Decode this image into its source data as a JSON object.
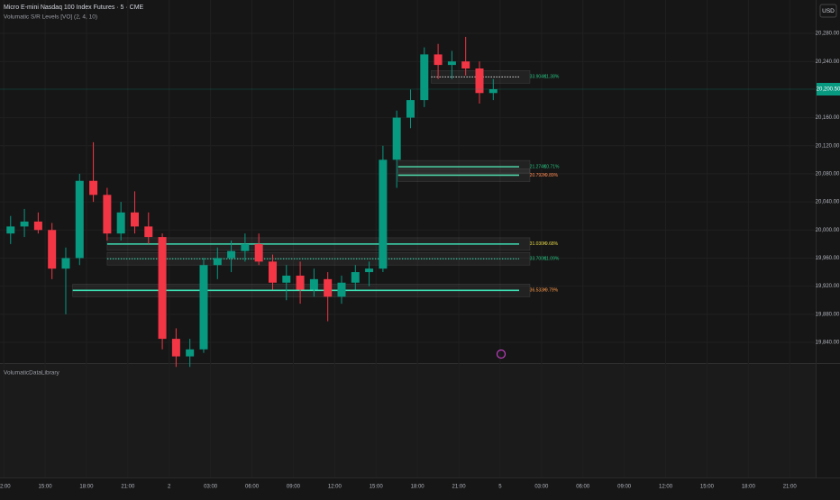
{
  "header": {
    "symbol": "Micro E-mini Nasdaq 100 Index Futures · 5 · CME",
    "indicator": "Volumatic S/R Levels [VO] (2, 4, 10)",
    "currency": "USD"
  },
  "pane2_title": "VolumaticDataLibrary",
  "chart_data": {
    "type": "candlestick",
    "x": [
      0.5,
      1.5,
      2.5,
      3.5,
      4.5,
      5.5,
      6.5,
      7.5,
      8.5,
      9.5,
      10.5,
      11.5,
      12.5,
      13.5,
      14.5,
      15.5,
      16.5,
      17.5,
      18.5,
      19.5,
      20.5,
      21.5,
      22.5,
      23.5,
      24.5,
      25.5,
      26.5,
      27.5,
      28.5,
      29.5,
      30.5,
      31.5,
      32.5,
      33.5,
      34.5,
      35.5
    ],
    "open": [
      19995,
      20005,
      20012,
      20000,
      19945,
      19960,
      20070,
      20050,
      19995,
      20025,
      20005,
      19990,
      19845,
      19820,
      19830,
      19950,
      19960,
      19970,
      19980,
      19955,
      19925,
      19935,
      19915,
      19930,
      19905,
      19925,
      19940,
      19945,
      20100,
      20160,
      20185,
      20250,
      20235,
      20240,
      20230,
      20195
    ],
    "high": [
      20020,
      20030,
      20025,
      20010,
      19975,
      20080,
      20125,
      20060,
      20040,
      20055,
      20025,
      19995,
      19860,
      19845,
      19960,
      19975,
      19985,
      19995,
      19995,
      19965,
      19950,
      19955,
      19945,
      19940,
      19935,
      19950,
      19955,
      20120,
      20170,
      20200,
      20260,
      20265,
      20255,
      20275,
      20240,
      20215
    ],
    "low": [
      19980,
      19990,
      19995,
      19930,
      19880,
      19950,
      20040,
      19985,
      19985,
      19995,
      19980,
      19830,
      19805,
      19805,
      19825,
      19930,
      19940,
      19955,
      19950,
      19915,
      19900,
      19895,
      19905,
      19870,
      19895,
      19915,
      19920,
      19940,
      20060,
      20145,
      20175,
      20215,
      20215,
      20220,
      20180,
      20185
    ],
    "close": [
      20005,
      20012,
      20000,
      19945,
      19960,
      20070,
      20050,
      19995,
      20025,
      20005,
      19990,
      19845,
      19820,
      19830,
      19950,
      19960,
      19970,
      19980,
      19955,
      19925,
      19935,
      19915,
      19930,
      19905,
      19925,
      19940,
      19945,
      20100,
      20160,
      20185,
      20250,
      20235,
      20240,
      20230,
      20195,
      20200.5
    ],
    "up_color": "#089981",
    "down_color": "#f23645",
    "xlim": [
      -0.27,
      58.88
    ],
    "xticks": [
      {
        "value": 0,
        "label": "12:00"
      },
      {
        "value": 3,
        "label": "15:00"
      },
      {
        "value": 6,
        "label": "18:00"
      },
      {
        "value": 9,
        "label": "21:00"
      },
      {
        "value": 12,
        "label": "2"
      },
      {
        "value": 15,
        "label": "03:00"
      },
      {
        "value": 18,
        "label": "06:00"
      },
      {
        "value": 21,
        "label": "09:00"
      },
      {
        "value": 24,
        "label": "12:00"
      },
      {
        "value": 27,
        "label": "15:00"
      },
      {
        "value": 30,
        "label": "18:00"
      },
      {
        "value": 33,
        "label": "21:00"
      },
      {
        "value": 36,
        "label": "5"
      },
      {
        "value": 39,
        "label": "03:00"
      },
      {
        "value": 42,
        "label": "06:00"
      },
      {
        "value": 45,
        "label": "09:00"
      },
      {
        "value": 48,
        "label": "12:00"
      },
      {
        "value": 51,
        "label": "15:00"
      },
      {
        "value": 54,
        "label": "18:00"
      },
      {
        "value": 57,
        "label": "21:00"
      }
    ],
    "ylim": [
      19810.5,
      20327.5
    ],
    "yticks": [
      {
        "value": 20280,
        "label": "20,280.00"
      },
      {
        "value": 20240,
        "label": "20,240.00"
      },
      {
        "value": 20160,
        "label": "20,160.00"
      },
      {
        "value": 20120,
        "label": "20,120.00"
      },
      {
        "value": 20080,
        "label": "20,080.00"
      },
      {
        "value": 20040,
        "label": "20,040.00"
      },
      {
        "value": 20000,
        "label": "20,000.00"
      },
      {
        "value": 19960,
        "label": "19,960.00"
      },
      {
        "value": 19920,
        "label": "19,920.00"
      },
      {
        "value": 19880,
        "label": "19,880.00"
      },
      {
        "value": 19840,
        "label": "19,840.00"
      }
    ],
    "grid": true,
    "last_price": {
      "value": 20200.5,
      "label": "20,200.50"
    },
    "levels": [
      {
        "price": 20218,
        "start": 31.0,
        "volume": "33.904K",
        "percent": "11.38%",
        "style": "dotted",
        "line_color": "#d8d8d8",
        "label_color": "#26c281"
      },
      {
        "price": 20090,
        "start": 28.6,
        "volume": "21.274K",
        "percent": "10.71%",
        "style": "solid",
        "line_color": "#4fd6a8",
        "label_color": "#26c281"
      },
      {
        "price": 20078,
        "start": 28.6,
        "volume": "20.792K",
        "percent": "9.89%",
        "style": "solid",
        "line_color": "#4fd6a8",
        "label_color": "#ff8a50"
      },
      {
        "price": 19980,
        "start": 7.5,
        "volume": "31.030K",
        "percent": "9.68%",
        "style": "solid",
        "line_color": "#3ee0b4",
        "label_color": "#e6d84a"
      },
      {
        "price": 19959,
        "start": 7.5,
        "volume": "33.700K",
        "percent": "11.09%",
        "style": "dotted",
        "line_color": "#3ee0b4",
        "label_color": "#26c281"
      },
      {
        "price": 19914,
        "start": 5.0,
        "volume": "36.533K",
        "percent": "9.79%",
        "style": "solid",
        "line_color": "#3ee0b4",
        "label_color": "#ff9a4a"
      }
    ]
  }
}
